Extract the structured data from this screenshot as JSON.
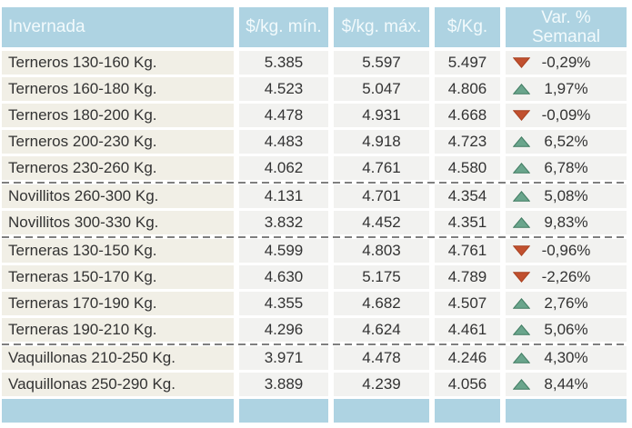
{
  "colors": {
    "header_bg": "#aed3e2",
    "header_fg": "#f2fafc",
    "label_bg": "#f1efe6",
    "value_bg": "#f2f2f0",
    "text": "#333333",
    "separator": "#7f7f7f",
    "up_fill": "#6aa58c",
    "up_stroke": "#3e7a60",
    "down_fill": "#c1502f",
    "down_stroke": "#a8401f"
  },
  "header": {
    "invernada": "Invernada",
    "min": "$/kg. mín.",
    "max": "$/kg. máx.",
    "avg": "$/Kg.",
    "var_line1": "Var. %",
    "var_line2": "Semanal"
  },
  "chart_data": {
    "type": "table",
    "title": "Invernada",
    "columns": [
      "Invernada",
      "$/kg. mín.",
      "$/kg. máx.",
      "$/Kg.",
      "Var. % Semanal"
    ],
    "groups": [
      {
        "name": "Terneros",
        "rows": [
          {
            "label": "Terneros 130-160 Kg.",
            "min": "5.385",
            "max": "5.597",
            "avg": "5.497",
            "dir": "down",
            "var": "-0,29%"
          },
          {
            "label": "Terneros 160-180 Kg.",
            "min": "4.523",
            "max": "5.047",
            "avg": "4.806",
            "dir": "up",
            "var": "1,97%"
          },
          {
            "label": "Terneros 180-200 Kg.",
            "min": "4.478",
            "max": "4.931",
            "avg": "4.668",
            "dir": "down",
            "var": "-0,09%"
          },
          {
            "label": "Terneros 200-230 Kg.",
            "min": "4.483",
            "max": "4.918",
            "avg": "4.723",
            "dir": "up",
            "var": "6,52%"
          },
          {
            "label": "Terneros 230-260 Kg.",
            "min": "4.062",
            "max": "4.761",
            "avg": "4.580",
            "dir": "up",
            "var": "6,78%"
          }
        ]
      },
      {
        "name": "Novillitos",
        "rows": [
          {
            "label": "Novillitos 260-300 Kg.",
            "min": "4.131",
            "max": "4.701",
            "avg": "4.354",
            "dir": "up",
            "var": "5,08%"
          },
          {
            "label": "Novillitos 300-330 Kg.",
            "min": "3.832",
            "max": "4.452",
            "avg": "4.351",
            "dir": "up",
            "var": "9,83%"
          }
        ]
      },
      {
        "name": "Terneras",
        "rows": [
          {
            "label": "Terneras 130-150 Kg.",
            "min": "4.599",
            "max": "4.803",
            "avg": "4.761",
            "dir": "down",
            "var": "-0,96%"
          },
          {
            "label": "Terneras 150-170 Kg.",
            "min": "4.630",
            "max": "5.175",
            "avg": "4.789",
            "dir": "down",
            "var": "-2,26%"
          },
          {
            "label": "Terneras 170-190 Kg.",
            "min": "4.355",
            "max": "4.682",
            "avg": "4.507",
            "dir": "up",
            "var": "2,76%"
          },
          {
            "label": "Terneras 190-210 Kg.",
            "min": "4.296",
            "max": "4.624",
            "avg": "4.461",
            "dir": "up",
            "var": "5,06%"
          }
        ]
      },
      {
        "name": "Vaquillonas",
        "rows": [
          {
            "label": "Vaquillonas 210-250 Kg.",
            "min": "3.971",
            "max": "4.478",
            "avg": "4.246",
            "dir": "up",
            "var": "4,30%"
          },
          {
            "label": "Vaquillonas 250-290 Kg.",
            "min": "3.889",
            "max": "4.239",
            "avg": "4.056",
            "dir": "up",
            "var": "8,44%"
          }
        ]
      }
    ]
  }
}
